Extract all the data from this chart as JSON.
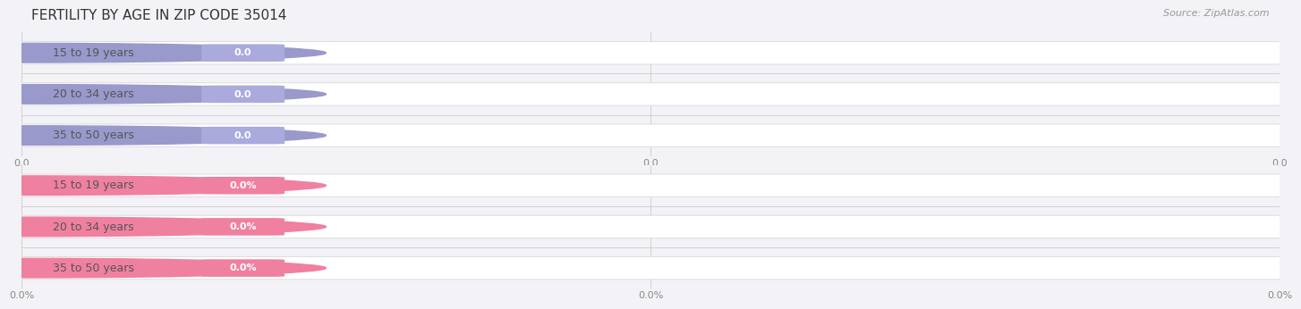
{
  "title": "FERTILITY BY AGE IN ZIP CODE 35014",
  "source": "Source: ZipAtlas.com",
  "background_color": "#f2f2f7",
  "top_section": {
    "categories": [
      "15 to 19 years",
      "20 to 34 years",
      "35 to 50 years"
    ],
    "values": [
      0.0,
      0.0,
      0.0
    ],
    "accent_color": "#9999cc",
    "badge_color": "#aaaadd",
    "xtick_labels": [
      "0.0",
      "0.0",
      "0.0"
    ]
  },
  "bottom_section": {
    "categories": [
      "15 to 19 years",
      "20 to 34 years",
      "35 to 50 years"
    ],
    "values": [
      0.0,
      0.0,
      0.0
    ],
    "accent_color": "#f080a0",
    "badge_color": "#f080a0",
    "xtick_labels": [
      "0.0%",
      "0.0%",
      "0.0%"
    ]
  },
  "title_fontsize": 11,
  "source_fontsize": 8,
  "cat_fontsize": 9,
  "badge_fontsize": 8,
  "tick_fontsize": 8
}
